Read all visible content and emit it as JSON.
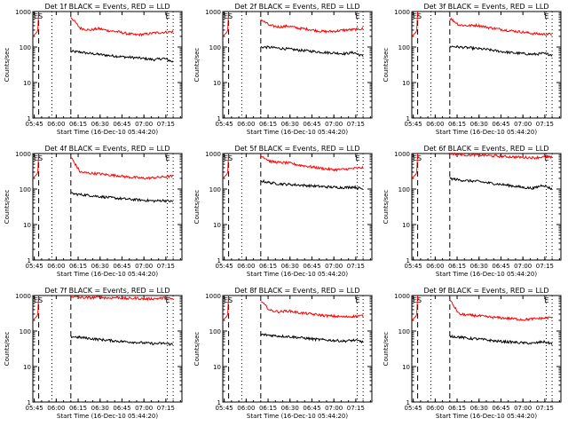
{
  "chart_data": [
    {
      "type": "line",
      "title": "Det 1f BLACK = Events, RED = LLD",
      "xlabel": "Start Time (16-Dec-10 05:44:20)",
      "ylabel": "Counts/sec",
      "y_scale": "log",
      "ylim": [
        1,
        1000
      ],
      "x_ticks": [
        "05:45",
        "06:00",
        "06:15",
        "06:30",
        "06:45",
        "07:00",
        "07:15"
      ],
      "markers": [
        "ES",
        "E"
      ],
      "series": [
        {
          "name": "Events",
          "color": "#000000",
          "x_start": "06:10",
          "x_end": "07:20",
          "values": [
            75,
            72,
            66,
            62,
            58,
            55,
            52,
            50,
            47,
            44,
            48,
            38
          ]
        },
        {
          "name": "LLD",
          "color": "#ff0000",
          "x_start": "06:10",
          "x_end": "07:20",
          "values": [
            700,
            340,
            300,
            330,
            290,
            270,
            240,
            220,
            230,
            250,
            260,
            270
          ]
        }
      ]
    },
    {
      "type": "line",
      "title": "Det 2f BLACK = Events, RED = LLD",
      "xlabel": "Start Time (16-Dec-10 05:44:20)",
      "ylabel": "Counts/sec",
      "y_scale": "log",
      "ylim": [
        1,
        1000
      ],
      "x_ticks": [
        "05:45",
        "06:00",
        "06:15",
        "06:30",
        "06:45",
        "07:00",
        "07:15"
      ],
      "markers": [
        "ES",
        "E"
      ],
      "series": [
        {
          "name": "Events",
          "color": "#000000",
          "x_start": "06:10",
          "x_end": "07:20",
          "values": [
            100,
            98,
            92,
            88,
            82,
            78,
            74,
            70,
            68,
            65,
            70,
            55
          ]
        },
        {
          "name": "LLD",
          "color": "#ff0000",
          "x_start": "06:10",
          "x_end": "07:20",
          "values": [
            600,
            400,
            370,
            390,
            340,
            320,
            290,
            270,
            280,
            300,
            310,
            330
          ]
        }
      ]
    },
    {
      "type": "line",
      "title": "Det 3f BLACK = Events, RED = LLD",
      "xlabel": "Start Time (16-Dec-10 05:44:20)",
      "ylabel": "Counts/sec",
      "y_scale": "log",
      "ylim": [
        1,
        1000
      ],
      "x_ticks": [
        "05:45",
        "06:00",
        "06:15",
        "06:30",
        "06:45",
        "07:00",
        "07:15"
      ],
      "markers": [
        "ES",
        "E"
      ],
      "series": [
        {
          "name": "Events",
          "color": "#000000",
          "x_start": "06:10",
          "x_end": "07:20",
          "values": [
            105,
            100,
            95,
            90,
            85,
            78,
            72,
            68,
            65,
            62,
            66,
            60
          ]
        },
        {
          "name": "LLD",
          "color": "#ff0000",
          "x_start": "06:10",
          "x_end": "07:20",
          "values": [
            650,
            420,
            400,
            410,
            360,
            330,
            300,
            280,
            260,
            240,
            230,
            230
          ]
        }
      ]
    },
    {
      "type": "line",
      "title": "Det 4f BLACK = Events, RED = LLD",
      "xlabel": "Start Time (16-Dec-10 05:44:20)",
      "ylabel": "Counts/sec",
      "y_scale": "log",
      "ylim": [
        1,
        1000
      ],
      "x_ticks": [
        "05:45",
        "06:00",
        "06:15",
        "06:30",
        "06:45",
        "07:00",
        "07:15"
      ],
      "markers": [
        "ES",
        "E"
      ],
      "series": [
        {
          "name": "Events",
          "color": "#000000",
          "x_start": "06:10",
          "x_end": "07:20",
          "values": [
            75,
            70,
            66,
            62,
            58,
            55,
            52,
            50,
            48,
            46,
            48,
            44
          ]
        },
        {
          "name": "LLD",
          "color": "#ff0000",
          "x_start": "06:10",
          "x_end": "07:20",
          "values": [
            800,
            300,
            280,
            270,
            250,
            240,
            220,
            210,
            200,
            210,
            220,
            230
          ]
        }
      ]
    },
    {
      "type": "line",
      "title": "Det 5f BLACK = Events, RED = LLD",
      "xlabel": "Start Time (16-Dec-10 05:44:20)",
      "ylabel": "Counts/sec",
      "y_scale": "log",
      "ylim": [
        1,
        1000
      ],
      "x_ticks": [
        "05:45",
        "06:00",
        "06:15",
        "06:30",
        "06:45",
        "07:00",
        "07:15"
      ],
      "markers": [
        "ES",
        "E"
      ],
      "series": [
        {
          "name": "Events",
          "color": "#000000",
          "x_start": "06:10",
          "x_end": "07:20",
          "values": [
            170,
            150,
            140,
            135,
            130,
            125,
            120,
            115,
            112,
            110,
            115,
            100
          ]
        },
        {
          "name": "LLD",
          "color": "#ff0000",
          "x_start": "06:10",
          "x_end": "07:20",
          "values": [
            900,
            600,
            560,
            540,
            480,
            440,
            400,
            370,
            350,
            360,
            380,
            400
          ]
        }
      ]
    },
    {
      "type": "line",
      "title": "Det 6f BLACK = Events, RED = LLD",
      "xlabel": "Start Time (16-Dec-10 05:44:20)",
      "ylabel": "Counts/sec",
      "y_scale": "log",
      "ylim": [
        1,
        1000
      ],
      "x_ticks": [
        "05:45",
        "06:00",
        "06:15",
        "06:30",
        "06:45",
        "07:00",
        "07:15"
      ],
      "markers": [
        "ES",
        "E"
      ],
      "series": [
        {
          "name": "Events",
          "color": "#000000",
          "x_start": "06:10",
          "x_end": "07:20",
          "values": [
            200,
            180,
            170,
            165,
            150,
            140,
            130,
            120,
            110,
            105,
            130,
            100
          ]
        },
        {
          "name": "LLD",
          "color": "#ff0000",
          "x_start": "06:10",
          "x_end": "07:20",
          "values": [
            1000,
            950,
            900,
            920,
            880,
            850,
            820,
            800,
            780,
            760,
            800,
            780
          ]
        }
      ]
    },
    {
      "type": "line",
      "title": "Det 7f BLACK = Events, RED = LLD",
      "xlabel": "Start Time (16-Dec-10 05:44:20)",
      "ylabel": "Counts/sec",
      "y_scale": "log",
      "ylim": [
        1,
        1000
      ],
      "x_ticks": [
        "05:45",
        "06:00",
        "06:15",
        "06:30",
        "06:45",
        "07:00",
        "07:15"
      ],
      "markers": [
        "ES",
        "E"
      ],
      "series": [
        {
          "name": "Events",
          "color": "#000000",
          "x_start": "06:10",
          "x_end": "07:20",
          "values": [
            70,
            66,
            62,
            58,
            55,
            52,
            50,
            48,
            46,
            44,
            45,
            42
          ]
        },
        {
          "name": "LLD",
          "color": "#ff0000",
          "x_start": "06:10",
          "x_end": "07:20",
          "values": [
            950,
            880,
            860,
            900,
            850,
            880,
            820,
            840,
            800,
            820,
            850,
            800
          ]
        }
      ]
    },
    {
      "type": "line",
      "title": "Det 8f BLACK = Events, RED = LLD",
      "xlabel": "Start Time (16-Dec-10 05:44:20)",
      "ylabel": "Counts/sec",
      "y_scale": "log",
      "ylim": [
        1,
        1000
      ],
      "x_ticks": [
        "05:45",
        "06:00",
        "06:15",
        "06:30",
        "06:45",
        "07:00",
        "07:15"
      ],
      "markers": [
        "ES",
        "E"
      ],
      "series": [
        {
          "name": "Events",
          "color": "#000000",
          "x_start": "06:10",
          "x_end": "07:20",
          "values": [
            80,
            76,
            72,
            70,
            66,
            62,
            58,
            56,
            54,
            52,
            55,
            50
          ]
        },
        {
          "name": "LLD",
          "color": "#ff0000",
          "x_start": "06:10",
          "x_end": "07:20",
          "values": [
            700,
            380,
            350,
            370,
            330,
            310,
            290,
            270,
            260,
            250,
            260,
            270
          ]
        }
      ]
    },
    {
      "type": "line",
      "title": "Det 9f BLACK = Events, RED = LLD",
      "xlabel": "Start Time (16-Dec-10 05:44:20)",
      "ylabel": "Counts/sec",
      "y_scale": "log",
      "ylim": [
        1,
        1000
      ],
      "x_ticks": [
        "05:45",
        "06:00",
        "06:15",
        "06:30",
        "06:45",
        "07:00",
        "07:15"
      ],
      "markers": [
        "ES",
        "E"
      ],
      "series": [
        {
          "name": "Events",
          "color": "#000000",
          "x_start": "06:10",
          "x_end": "07:20",
          "values": [
            72,
            68,
            62,
            60,
            56,
            52,
            50,
            48,
            46,
            45,
            50,
            44
          ]
        },
        {
          "name": "LLD",
          "color": "#ff0000",
          "x_start": "06:10",
          "x_end": "07:20",
          "values": [
            750,
            300,
            280,
            270,
            250,
            240,
            230,
            220,
            210,
            220,
            230,
            240
          ]
        }
      ]
    }
  ]
}
